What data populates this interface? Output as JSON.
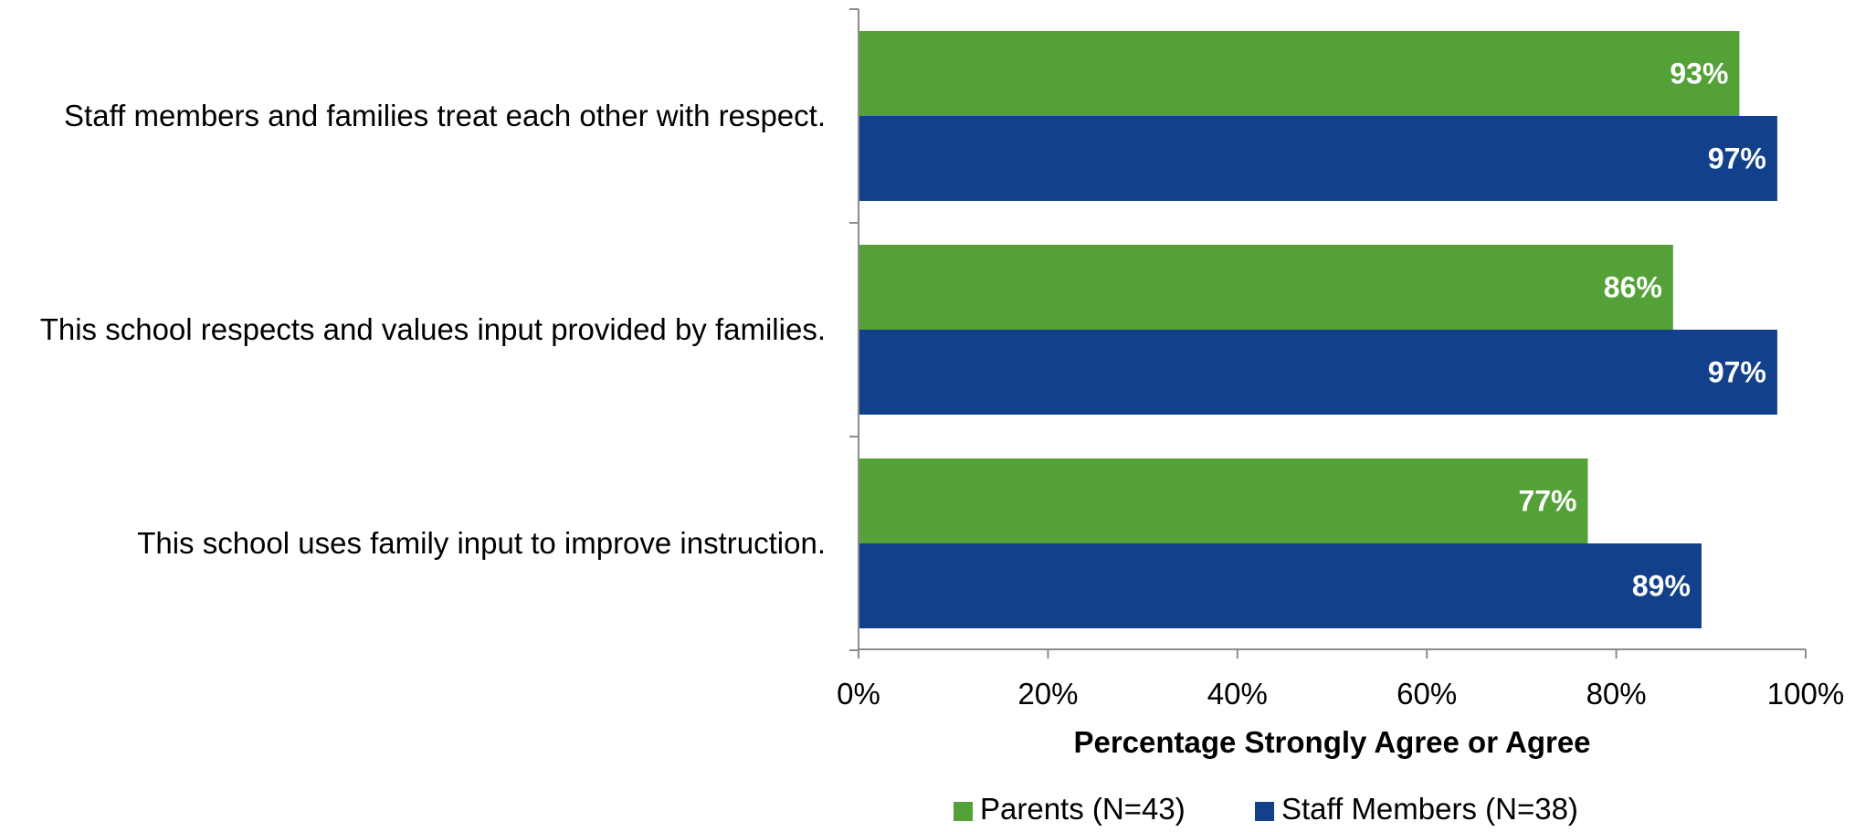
{
  "chart_data": {
    "type": "bar",
    "orientation": "horizontal",
    "categories": [
      "Staff members and families treat each other with respect.",
      "This school respects and values input provided by families.",
      "This school uses family input to improve instruction."
    ],
    "series": [
      {
        "name": "Parents (N=43)",
        "color": "#53a137",
        "values": [
          93,
          86,
          77
        ],
        "labels": [
          "93%",
          "86%",
          "77%"
        ]
      },
      {
        "name": "Staff Members (N=38)",
        "color": "#12408a",
        "values": [
          97,
          97,
          89
        ],
        "labels": [
          "97%",
          "97%",
          "89%"
        ]
      }
    ],
    "xlim": [
      0,
      100
    ],
    "x_ticks": [
      "0%",
      "20%",
      "40%",
      "60%",
      "80%",
      "100%"
    ],
    "xlabel": "Percentage Strongly Agree or Agree",
    "ylabel": "",
    "title": "",
    "grid": false,
    "legend_position": "bottom"
  }
}
